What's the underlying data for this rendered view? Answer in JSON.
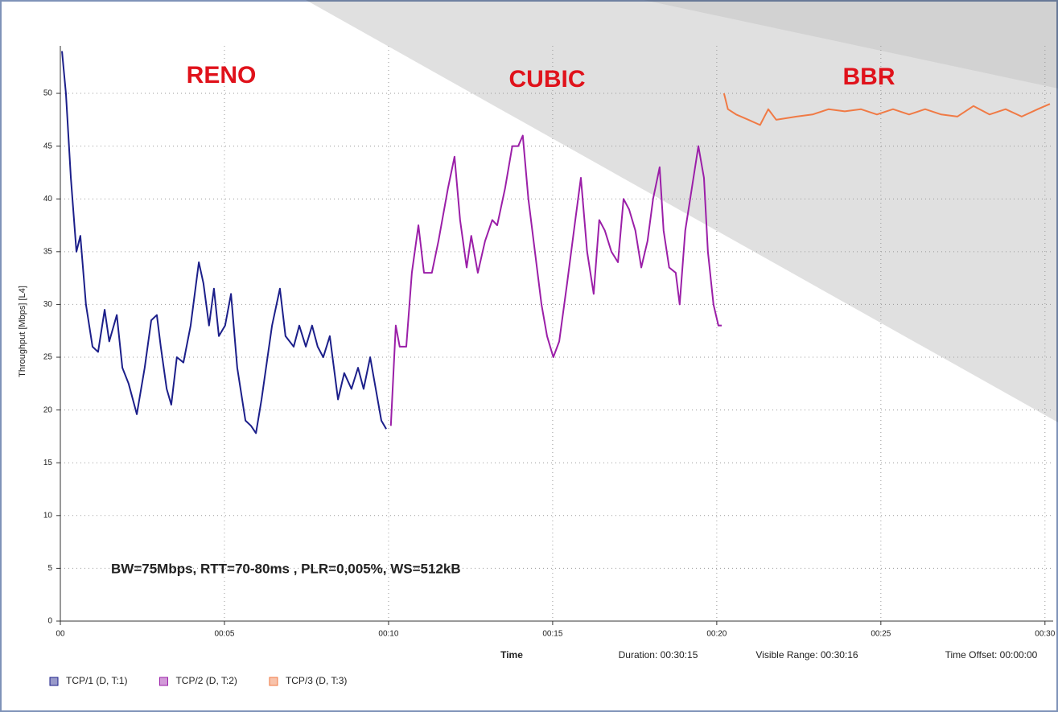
{
  "chart_data": {
    "type": "line",
    "y_label": "Throughput [Mbps] [L4]",
    "x_label": "Time",
    "annotations": [
      "RENO",
      "CUBIC",
      "BBR",
      "BW=75Mbps, RTT=70-80ms , PLR=0,005%, WS=512kB"
    ],
    "footer": [
      "Duration: 00:30:15",
      "Visible Range: 00:30:16",
      "Time Offset: 00:00:00"
    ],
    "xlim": [
      0,
      30.25
    ],
    "ylim": [
      0,
      54.5
    ],
    "xticks": [
      {
        "value": 0,
        "label": "00"
      },
      {
        "value": 5,
        "label": "00:05"
      },
      {
        "value": 10,
        "label": "00:10"
      },
      {
        "value": 15,
        "label": "00:15"
      },
      {
        "value": 20,
        "label": "00:20"
      },
      {
        "value": 25,
        "label": "00:25"
      },
      {
        "value": 30,
        "label": "00:30"
      }
    ],
    "yticks": [
      0,
      5,
      10,
      15,
      20,
      25,
      30,
      35,
      40,
      45,
      50
    ],
    "grid": true,
    "series": [
      {
        "name": "TCP/1 (D, T:1)",
        "color": "#1c1f8a",
        "x": [
          0.05,
          0.17,
          0.32,
          0.49,
          0.61,
          0.78,
          0.98,
          1.15,
          1.35,
          1.49,
          1.72,
          1.89,
          2.08,
          2.33,
          2.57,
          2.77,
          2.94,
          3.06,
          3.24,
          3.38,
          3.55,
          3.75,
          3.97,
          4.22,
          4.36,
          4.53,
          4.68,
          4.83,
          5.02,
          5.2,
          5.39,
          5.64,
          5.81,
          5.96,
          6.13,
          6.45,
          6.69,
          6.86,
          7.11,
          7.28,
          7.48,
          7.67,
          7.84,
          8.01,
          8.21,
          8.46,
          8.65,
          8.87,
          9.07,
          9.24,
          9.44,
          9.61,
          9.78,
          9.93
        ],
        "values": [
          54,
          50,
          42,
          35,
          36.5,
          30,
          26,
          25.5,
          29.5,
          26.5,
          29,
          24,
          22.5,
          19.6,
          24,
          28.5,
          29,
          26,
          22,
          20.5,
          25,
          24.5,
          28,
          34,
          32,
          28,
          31.5,
          27,
          28,
          31,
          24,
          19,
          18.5,
          17.8,
          21,
          28,
          31.5,
          27,
          26,
          28,
          26,
          28,
          26,
          25,
          27,
          21,
          23.5,
          22,
          24,
          22,
          25,
          22,
          19,
          18.2
        ]
      },
      {
        "name": "TCP/2 (D, T:2)",
        "color": "#9b1fa8",
        "x": [
          10.07,
          10.22,
          10.34,
          10.54,
          10.71,
          10.91,
          11.08,
          11.32,
          11.52,
          11.81,
          12.01,
          12.18,
          12.38,
          12.52,
          12.72,
          12.94,
          13.16,
          13.31,
          13.55,
          13.77,
          13.95,
          14.09,
          14.26,
          14.46,
          14.66,
          14.83,
          15.02,
          15.2,
          15.44,
          15.69,
          15.86,
          16.05,
          16.25,
          16.42,
          16.59,
          16.79,
          16.99,
          17.16,
          17.33,
          17.52,
          17.7,
          17.89,
          18.06,
          18.26,
          18.38,
          18.55,
          18.75,
          18.87,
          19.04,
          19.24,
          19.44,
          19.61,
          19.73,
          19.9,
          20.05,
          20.15
        ],
        "values": [
          18.5,
          28,
          26,
          26,
          33,
          37.5,
          33,
          33,
          36,
          41,
          44,
          38,
          33.5,
          36.5,
          33,
          36,
          38,
          37.5,
          41,
          45,
          45,
          46,
          40,
          35,
          30,
          27,
          25,
          26.5,
          32,
          38,
          42,
          35,
          31,
          38,
          37,
          35,
          34,
          40,
          39,
          37,
          33.5,
          36,
          40,
          43,
          37,
          33.5,
          33,
          30,
          37,
          41,
          45,
          42,
          35,
          30,
          28,
          28
        ]
      },
      {
        "name": "TCP/3 (D, T:3)",
        "color": "#f07a45",
        "x": [
          20.22,
          20.34,
          20.59,
          20.96,
          21.32,
          21.57,
          21.81,
          22.43,
          22.92,
          23.41,
          23.9,
          24.39,
          24.88,
          25.37,
          25.86,
          26.35,
          26.84,
          27.33,
          27.82,
          28.31,
          28.8,
          29.29,
          29.78,
          30.15
        ],
        "values": [
          50,
          48.5,
          48,
          47.5,
          47,
          48.5,
          47.5,
          47.8,
          48,
          48.5,
          48.3,
          48.5,
          48,
          48.5,
          48,
          48.5,
          48,
          47.8,
          48.8,
          48,
          48.5,
          47.8,
          48.5,
          49
        ]
      }
    ]
  }
}
